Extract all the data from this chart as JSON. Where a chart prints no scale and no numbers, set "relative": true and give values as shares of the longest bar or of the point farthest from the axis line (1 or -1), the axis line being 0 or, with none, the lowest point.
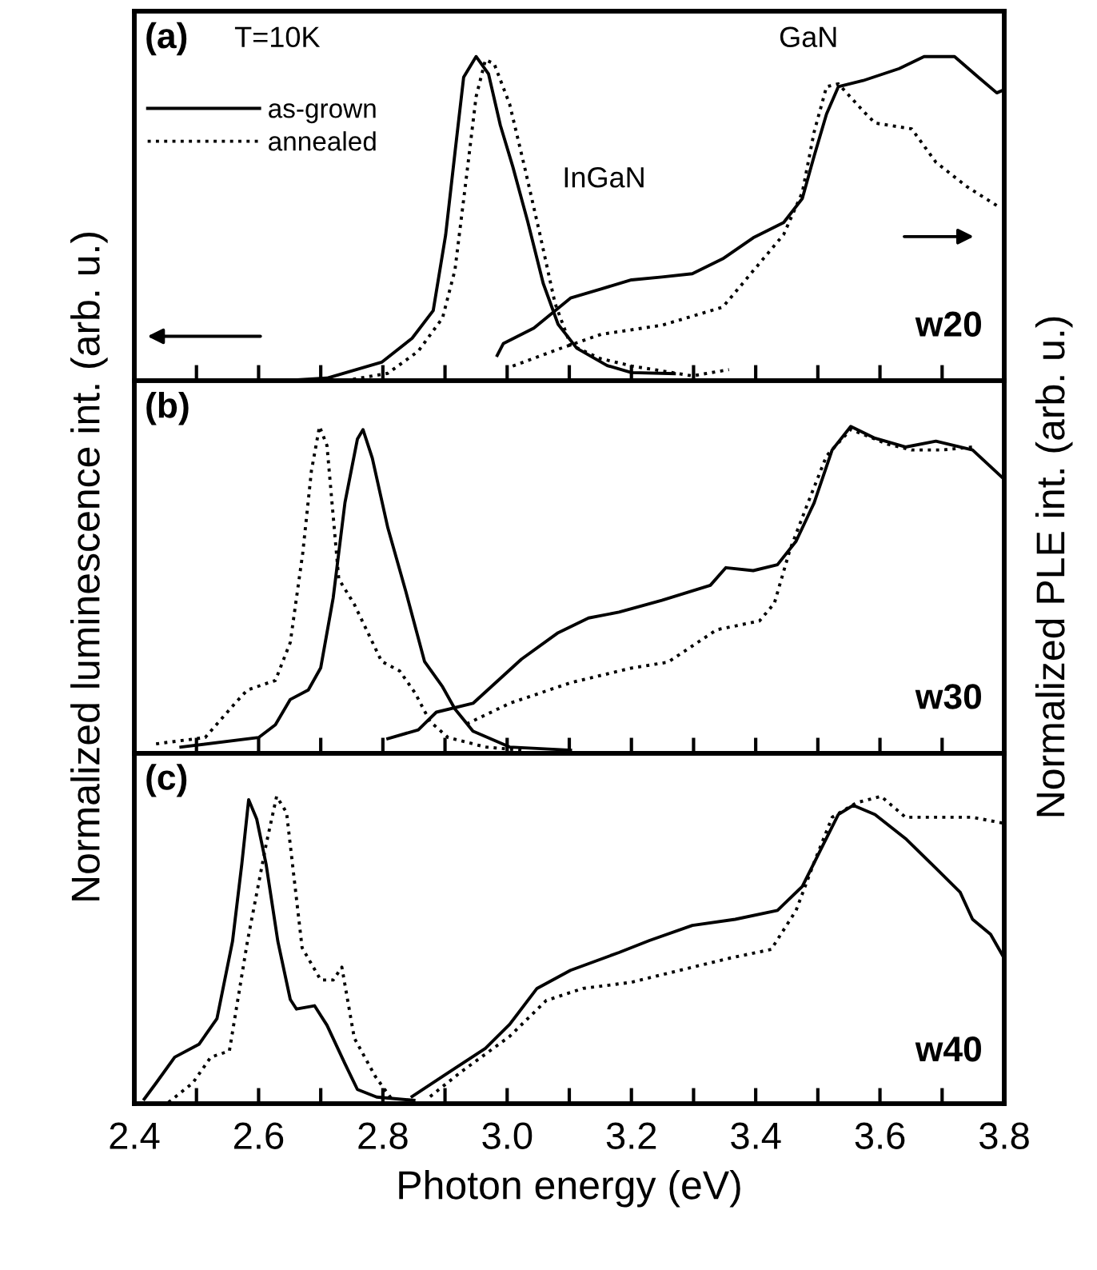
{
  "chart_data": [
    {
      "type": "line",
      "title": "(a)",
      "relative": true,
      "xlim": [
        2.4,
        3.8
      ],
      "xticks": [
        {
          "value": 2.4,
          "label": null
        },
        {
          "value": 2.5,
          "label": null
        },
        {
          "value": 2.6,
          "label": null
        },
        {
          "value": 2.7,
          "label": null
        },
        {
          "value": 2.8,
          "label": null
        },
        {
          "value": 2.9,
          "label": null
        },
        {
          "value": 3.0,
          "label": null
        },
        {
          "value": 3.1,
          "label": null
        },
        {
          "value": 3.2,
          "label": null
        },
        {
          "value": 3.3,
          "label": null
        },
        {
          "value": 3.4,
          "label": null
        },
        {
          "value": 3.5,
          "label": null
        },
        {
          "value": 3.6,
          "label": null
        },
        {
          "value": 3.7,
          "label": null
        },
        {
          "value": 3.8,
          "label": null
        }
      ],
      "tick_labels": false,
      "legend": "top left",
      "grid": false,
      "marker": "none",
      "annotations": [
        "T=10K",
        "InGaN",
        "GaN",
        "w20"
      ],
      "series": [
        {
          "name": "as-grown",
          "color": "#000000",
          "line_style": "solid",
          "x": [
            2.641,
            2.71,
            2.798,
            2.847,
            2.881,
            2.901,
            2.916,
            2.93,
            2.95,
            2.97,
            2.989,
            3.009,
            3.033,
            3.058,
            3.082,
            3.112,
            3.161,
            3.2,
            3.269
          ],
          "values": [
            0,
            0.007,
            0.05,
            0.115,
            0.19,
            0.395,
            0.618,
            0.823,
            0.879,
            0.832,
            0.693,
            0.581,
            0.432,
            0.264,
            0.153,
            0.088,
            0.041,
            0.022,
            0.019
          ]
        },
        {
          "name": "annealed",
          "color": "#000000",
          "line_style": "dotted",
          "x": [
            2.739,
            2.808,
            2.857,
            2.896,
            2.916,
            2.935,
            2.95,
            2.965,
            2.979,
            3.004,
            3.028,
            3.053,
            3.077,
            3.102,
            3.15,
            3.2,
            3.298,
            3.357
          ],
          "values": [
            0,
            0.02,
            0.08,
            0.17,
            0.3,
            0.56,
            0.77,
            0.87,
            0.86,
            0.75,
            0.58,
            0.395,
            0.21,
            0.097,
            0.06,
            0.04,
            0.013,
            0.03
          ]
        },
        {
          "axis": "y2",
          "color": "#000000",
          "line_style": "solid",
          "x": [
            2.984,
            2.994,
            3.043,
            3.102,
            3.151,
            3.2,
            3.249,
            3.298,
            3.347,
            3.396,
            3.445,
            3.475,
            3.494,
            3.514,
            3.533,
            3.573,
            3.631,
            3.671,
            3.72,
            3.759,
            3.788,
            3.8
          ],
          "values": [
            0.078,
            0.115,
            0.162,
            0.255,
            0.283,
            0.311,
            0.32,
            0.33,
            0.376,
            0.441,
            0.488,
            0.562,
            0.693,
            0.823,
            0.907,
            0.926,
            0.963,
            1.0,
            1.0,
            0.935,
            0.888,
            0.898
          ]
        },
        {
          "axis": "y2",
          "color": "#000000",
          "line_style": "dotted",
          "x": [
            3.009,
            3.082,
            3.151,
            3.249,
            3.347,
            3.396,
            3.445,
            3.475,
            3.494,
            3.514,
            3.533,
            3.573,
            3.592,
            3.651,
            3.69,
            3.739,
            3.793
          ],
          "values": [
            0.045,
            0.097,
            0.143,
            0.171,
            0.227,
            0.339,
            0.451,
            0.581,
            0.767,
            0.907,
            0.916,
            0.832,
            0.795,
            0.777,
            0.674,
            0.6,
            0.534
          ]
        }
      ]
    },
    {
      "type": "line",
      "title": "(b)",
      "relative": true,
      "xlim": [
        2.4,
        3.8
      ],
      "xticks": [
        {
          "value": 2.4,
          "label": null
        },
        {
          "value": 2.5,
          "label": null
        },
        {
          "value": 2.6,
          "label": null
        },
        {
          "value": 2.7,
          "label": null
        },
        {
          "value": 2.8,
          "label": null
        },
        {
          "value": 2.9,
          "label": null
        },
        {
          "value": 3.0,
          "label": null
        },
        {
          "value": 3.1,
          "label": null
        },
        {
          "value": 3.2,
          "label": null
        },
        {
          "value": 3.3,
          "label": null
        },
        {
          "value": 3.4,
          "label": null
        },
        {
          "value": 3.5,
          "label": null
        },
        {
          "value": 3.6,
          "label": null
        },
        {
          "value": 3.7,
          "label": null
        },
        {
          "value": 3.8,
          "label": null
        }
      ],
      "tick_labels": false,
      "grid": false,
      "marker": "none",
      "ylabel": "Normalized luminescence int. (arb. u.)",
      "y2label": "Normalized PLE int. (arb. u.)",
      "annotations": [
        "w30"
      ],
      "series": [
        {
          "color": "#000000",
          "line_style": "solid",
          "x": [
            2.475,
            2.6,
            2.627,
            2.651,
            2.68,
            2.7,
            2.72,
            2.739,
            2.759,
            2.768,
            2.783,
            2.808,
            2.837,
            2.867,
            2.896,
            2.916,
            2.945,
            3.004,
            3.102
          ],
          "values": [
            0.018,
            0.045,
            0.081,
            0.153,
            0.18,
            0.243,
            0.441,
            0.712,
            0.892,
            0.919,
            0.838,
            0.64,
            0.459,
            0.261,
            0.189,
            0.126,
            0.063,
            0.018,
            0.009
          ]
        },
        {
          "color": "#000000",
          "line_style": "dotted",
          "x": [
            2.435,
            2.514,
            2.563,
            2.582,
            2.627,
            2.651,
            2.671,
            2.685,
            2.698,
            2.71,
            2.729,
            2.754,
            2.798,
            2.827,
            2.852,
            2.876,
            2.905,
            2.965,
            3.023
          ],
          "values": [
            0.027,
            0.045,
            0.144,
            0.18,
            0.207,
            0.315,
            0.568,
            0.802,
            0.928,
            0.874,
            0.495,
            0.423,
            0.261,
            0.234,
            0.171,
            0.09,
            0.045,
            0.018,
            0.009
          ]
        },
        {
          "axis": "y2",
          "color": "#000000",
          "line_style": "solid",
          "x": [
            2.808,
            2.857,
            2.886,
            2.945,
            3.023,
            3.082,
            3.131,
            3.18,
            3.249,
            3.327,
            3.352,
            3.396,
            3.435,
            3.465,
            3.494,
            3.523,
            3.553,
            3.592,
            3.641,
            3.69,
            3.749,
            3.8
          ],
          "values": [
            0.045,
            0.072,
            0.126,
            0.153,
            0.288,
            0.369,
            0.414,
            0.432,
            0.468,
            0.514,
            0.568,
            0.559,
            0.577,
            0.649,
            0.766,
            0.928,
            1.0,
            0.964,
            0.937,
            0.955,
            0.928,
            0.838
          ]
        },
        {
          "axis": "y2",
          "color": "#000000",
          "line_style": "dotted",
          "x": [
            2.935,
            3.004,
            3.102,
            3.2,
            3.259,
            3.337,
            3.406,
            3.43,
            3.455,
            3.484,
            3.514,
            3.553,
            3.612,
            3.651,
            3.7,
            3.749
          ],
          "values": [
            0.09,
            0.153,
            0.216,
            0.261,
            0.279,
            0.378,
            0.405,
            0.459,
            0.622,
            0.766,
            0.91,
            0.991,
            0.946,
            0.928,
            0.928,
            0.937
          ]
        }
      ]
    },
    {
      "type": "line",
      "title": "(c)",
      "relative": true,
      "xlim": [
        2.4,
        3.8
      ],
      "xticks": [
        2.4,
        {
          "value": 2.5,
          "label": null
        },
        2.6,
        {
          "value": 2.7,
          "label": null
        },
        2.8,
        {
          "value": 2.9,
          "label": null
        },
        {
          "value": 3.0,
          "label": "3.0"
        },
        {
          "value": 3.1,
          "label": null
        },
        3.2,
        {
          "value": 3.3,
          "label": null
        },
        3.4,
        {
          "value": 3.5,
          "label": null
        },
        3.6,
        {
          "value": 3.7,
          "label": null
        },
        3.8
      ],
      "tick_labels": "x",
      "grid": false,
      "marker": "none",
      "xlabel": "Photon energy (eV)",
      "annotations": [
        "w40"
      ],
      "series": [
        {
          "color": "#000000",
          "line_style": "solid",
          "x": [
            2.416,
            2.435,
            2.465,
            2.504,
            2.533,
            2.558,
            2.573,
            2.584,
            2.597,
            2.612,
            2.631,
            2.651,
            2.661,
            2.69,
            2.71,
            2.739,
            2.759,
            2.79,
            2.85
          ],
          "values": [
            0.014,
            0.0625,
            0.141,
            0.18,
            0.258,
            0.492,
            0.727,
            0.922,
            0.863,
            0.727,
            0.492,
            0.316,
            0.287,
            0.297,
            0.238,
            0.121,
            0.043,
            0.02,
            0.01
          ]
        },
        {
          "color": "#000000",
          "line_style": "dotted",
          "x": [
            2.455,
            2.494,
            2.523,
            2.553,
            2.582,
            2.612,
            2.629,
            2.645,
            2.67,
            2.7,
            2.72,
            2.734,
            2.754,
            2.788,
            2.818
          ],
          "values": [
            0.004,
            0.0625,
            0.141,
            0.16,
            0.492,
            0.785,
            0.932,
            0.883,
            0.473,
            0.375,
            0.375,
            0.414,
            0.199,
            0.082,
            0.004
          ]
        },
        {
          "axis": "y2",
          "color": "#000000",
          "line_style": "solid",
          "x": [
            2.847,
            2.906,
            2.965,
            3.004,
            3.048,
            3.102,
            3.18,
            3.229,
            3.298,
            3.367,
            3.435,
            3.475,
            3.504,
            3.533,
            3.557,
            3.592,
            3.641,
            3.69,
            3.729,
            3.749,
            3.778,
            3.8
          ],
          "values": [
            0.023,
            0.102,
            0.18,
            0.258,
            0.375,
            0.434,
            0.492,
            0.531,
            0.58,
            0.6,
            0.629,
            0.707,
            0.824,
            0.941,
            0.971,
            0.941,
            0.863,
            0.766,
            0.688,
            0.6,
            0.551,
            0.473
          ]
        },
        {
          "axis": "y2",
          "color": "#000000",
          "line_style": "dotted",
          "x": [
            2.876,
            2.925,
            3.004,
            3.063,
            3.122,
            3.2,
            3.278,
            3.357,
            3.425,
            3.465,
            3.494,
            3.523,
            3.563,
            3.602,
            3.641,
            3.69,
            3.749,
            3.8
          ],
          "values": [
            0.023,
            0.102,
            0.219,
            0.336,
            0.375,
            0.395,
            0.434,
            0.473,
            0.502,
            0.629,
            0.785,
            0.932,
            0.98,
            1.0,
            0.932,
            0.932,
            0.932,
            0.912
          ]
        }
      ]
    }
  ]
}
